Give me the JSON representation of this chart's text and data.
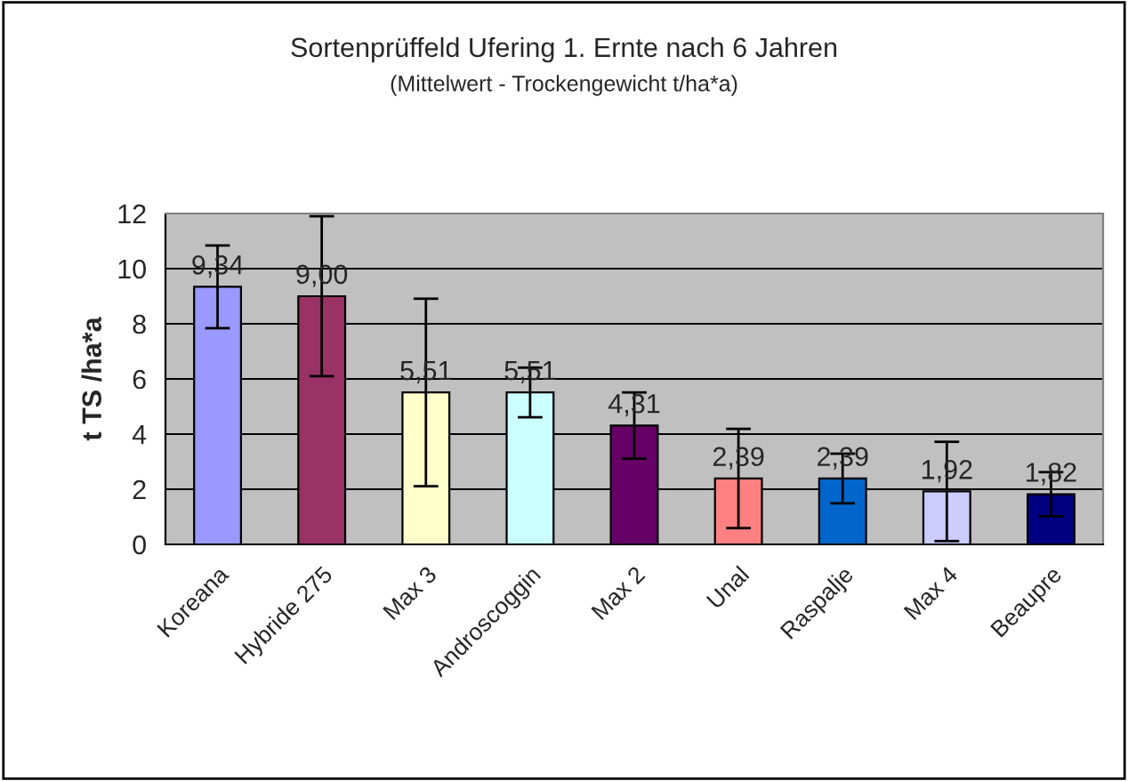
{
  "chart_data": {
    "type": "bar",
    "title": "Sortenprüffeld Ufering 1. Ernte nach 6 Jahren",
    "subtitle": "(Mittelwert - Trockengewicht t/ha*a)",
    "ylabel": "t TS /ha*a",
    "categories": [
      "Koreana",
      "Hybride 275",
      "Max 3",
      "Androscoggin",
      "Max 2",
      "Unal",
      "Raspalje",
      "Max 4",
      "Beaupre"
    ],
    "values": [
      9.34,
      9.0,
      5.51,
      5.51,
      4.31,
      2.39,
      2.39,
      1.92,
      1.82
    ],
    "value_labels": [
      "9,34",
      "9,00",
      "5,51",
      "5,51",
      "4,31",
      "2,39",
      "2,39",
      "1,92",
      "1,82"
    ],
    "errors": [
      1.5,
      2.9,
      3.4,
      0.9,
      1.2,
      1.8,
      0.9,
      1.8,
      0.8
    ],
    "colors": [
      "#9999ff",
      "#993366",
      "#ffffcc",
      "#ccffff",
      "#660066",
      "#ff8080",
      "#0066cc",
      "#ccccff",
      "#000080"
    ],
    "ylim": [
      0,
      12
    ],
    "yticks": [
      0,
      2,
      4,
      6,
      8,
      10,
      12
    ],
    "grid": "y",
    "legend": false
  }
}
